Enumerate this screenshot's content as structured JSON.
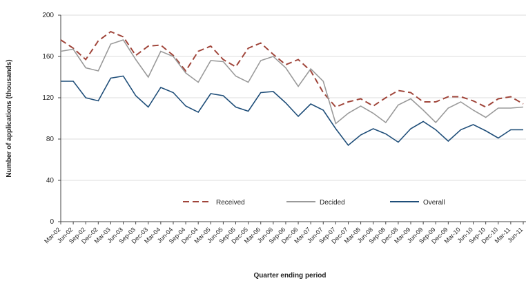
{
  "chart_data": {
    "type": "line",
    "y_label": "Number of applications (thousands)",
    "x_label": "Quarter ending period",
    "categories": [
      "Mar-02",
      "Jun-02",
      "Sep-02",
      "Dec-02",
      "Mar-03",
      "Jun-03",
      "Sep-03",
      "Dec-03",
      "Mar-04",
      "Jun-04",
      "Sep-04",
      "Dec-04",
      "Mar-05",
      "Jun-05",
      "Sep-05",
      "Dec-05",
      "Mar-06",
      "Jun-06",
      "Sep-06",
      "Dec-06",
      "Mar-07",
      "Jun-07",
      "Sep-07",
      "Dec-07",
      "Mar-08",
      "Jun-08",
      "Sep-08",
      "Dec-08",
      "Mar-09",
      "Jun-09",
      "Sep-09",
      "Dec-09",
      "Mar-10",
      "Jun-10",
      "Sep-10",
      "Dec-10",
      "Mar-11",
      "Jun-11"
    ],
    "series": [
      {
        "name": "Received",
        "color": "#a0453a",
        "dash": true,
        "values": [
          176,
          168,
          157,
          175,
          184,
          179,
          161,
          170,
          171,
          161,
          146,
          165,
          170,
          157,
          150,
          168,
          173,
          162,
          152,
          157,
          146,
          125,
          111,
          116,
          119,
          112,
          120,
          127,
          125,
          116,
          116,
          121,
          121,
          117,
          111,
          119,
          121,
          114
        ]
      },
      {
        "name": "Decided",
        "color": "#9a9a9a",
        "dash": false,
        "values": [
          165,
          167,
          149,
          146,
          172,
          176,
          157,
          140,
          165,
          160,
          144,
          135,
          156,
          155,
          141,
          135,
          156,
          160,
          149,
          131,
          148,
          136,
          95,
          105,
          112,
          105,
          96,
          113,
          119,
          108,
          96,
          110,
          116,
          108,
          101,
          110,
          110,
          111
        ]
      },
      {
        "name": "Overall",
        "color": "#1f4e79",
        "dash": false,
        "values": [
          136,
          136,
          120,
          117,
          139,
          141,
          122,
          111,
          130,
          125,
          112,
          106,
          124,
          122,
          111,
          107,
          125,
          126,
          115,
          102,
          114,
          108,
          90,
          74,
          84,
          90,
          85,
          77,
          90,
          97,
          89,
          78,
          89,
          94,
          88,
          81,
          89,
          89
        ]
      }
    ],
    "ylim": [
      0,
      200
    ],
    "yticks": [
      0,
      40,
      80,
      120,
      160,
      200
    ],
    "grid": true,
    "legend": "bottom"
  }
}
